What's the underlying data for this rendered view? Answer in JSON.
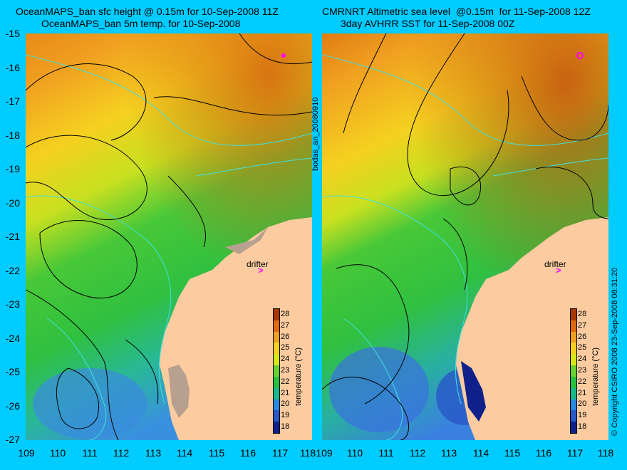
{
  "left_panel": {
    "title_line1": "OceanMAPS_ban sfc height @ 0.15m for 10-Sep-2008 11Z",
    "title_line2": "OceanMAPS_ban 5m temp. for 10-Sep-2008",
    "drifter_label": "drifter"
  },
  "right_panel": {
    "title_line1": "CMRNRT Altimetric sea level  @0.15m  for 11-Sep-2008 12Z",
    "title_line2": "3day AVHRR SST for 11-Sep-2008 00Z",
    "drifter_label": "drifter"
  },
  "y_axis": {
    "ticks": [
      "-15",
      "-16",
      "-17",
      "-18",
      "-19",
      "-20",
      "-21",
      "-22",
      "-23",
      "-24",
      "-25",
      "-26",
      "-27"
    ]
  },
  "x_axis": {
    "ticks": [
      "109",
      "110",
      "111",
      "112",
      "113",
      "114",
      "115",
      "116",
      "117",
      "118"
    ]
  },
  "colorbar": {
    "title": "temperature (°C)",
    "ticks": [
      "28",
      "27",
      "26",
      "25",
      "24",
      "23",
      "22",
      "21",
      "20",
      "19",
      "18"
    ],
    "colors": [
      "#a83800",
      "#e06a10",
      "#f0a020",
      "#f5d020",
      "#d8e818",
      "#68d030",
      "#28c040",
      "#18b88a",
      "#2888e0",
      "#2858c8",
      "#10208a"
    ]
  },
  "side_text": {
    "file_label": "bodas_an_20080910",
    "copyright": "© Copyright CSIRO 2008  23-Sep-2008 08:31:20"
  },
  "colors": {
    "background": "#00ccff",
    "land": "#fccca0",
    "contour_ssh": "#000000",
    "contour_depth": "#40e0e0",
    "drifter": "#ff00ff"
  }
}
